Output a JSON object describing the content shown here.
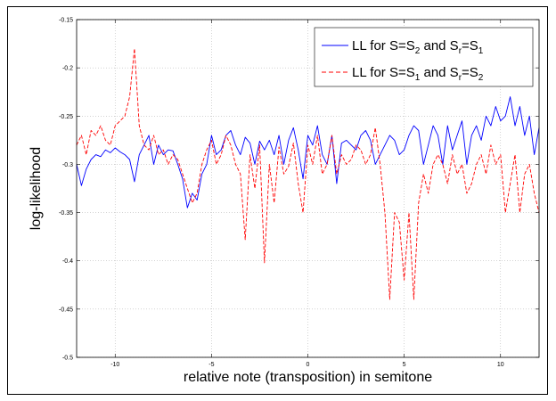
{
  "chart_data": {
    "type": "line",
    "xlabel": "relative note (transposition) in semitone",
    "ylabel": "log-likelihood",
    "xlim": [
      -12,
      12
    ],
    "ylim": [
      -0.5,
      -0.15
    ],
    "xticks": [
      -10,
      -5,
      0,
      5,
      10
    ],
    "xtick_labels": [
      "-10",
      "-5",
      "0",
      "5",
      "10"
    ],
    "yticks": [
      -0.5,
      -0.45,
      -0.4,
      -0.35,
      -0.3,
      -0.25,
      -0.2,
      -0.15
    ],
    "ytick_labels": [
      "-0.5",
      "-0.45",
      "-0.4",
      "-0.35",
      "-0.3",
      "-0.25",
      "-0.2",
      "-0.15"
    ],
    "grid": true,
    "legend_position": "top-right",
    "legend_entries": [
      {
        "label_parts": [
          "LL for S=S",
          "2",
          " and S",
          "r",
          "=S",
          "1"
        ]
      },
      {
        "label_parts": [
          "LL for S=S",
          "1",
          " and S",
          "r",
          "=S",
          "2"
        ]
      }
    ],
    "series": [
      {
        "color": "#0000ff",
        "dash": "solid",
        "x": [
          -12,
          -11.75,
          -11.5,
          -11.25,
          -11,
          -10.75,
          -10.5,
          -10.25,
          -10,
          -9.75,
          -9.5,
          -9.25,
          -9,
          -8.75,
          -8.5,
          -8.25,
          -8,
          -7.75,
          -7.5,
          -7.25,
          -7,
          -6.75,
          -6.5,
          -6.25,
          -6,
          -5.75,
          -5.5,
          -5.25,
          -5,
          -4.75,
          -4.5,
          -4.25,
          -4,
          -3.75,
          -3.5,
          -3.25,
          -3,
          -2.75,
          -2.5,
          -2.25,
          -2,
          -1.75,
          -1.5,
          -1.25,
          -1,
          -0.75,
          -0.5,
          -0.25,
          0,
          0.25,
          0.5,
          0.75,
          1,
          1.25,
          1.5,
          1.75,
          2,
          2.25,
          2.5,
          2.75,
          3,
          3.25,
          3.5,
          3.75,
          4,
          4.25,
          4.5,
          4.75,
          5,
          5.25,
          5.5,
          5.75,
          6,
          6.25,
          6.5,
          6.75,
          7,
          7.25,
          7.5,
          7.75,
          8,
          8.25,
          8.5,
          8.75,
          9,
          9.25,
          9.5,
          9.75,
          10,
          10.25,
          10.5,
          10.75,
          11,
          11.25,
          11.5,
          11.75,
          12
        ],
        "y": [
          -0.3,
          -0.322,
          -0.305,
          -0.295,
          -0.29,
          -0.292,
          -0.285,
          -0.288,
          -0.283,
          -0.287,
          -0.29,
          -0.295,
          -0.318,
          -0.29,
          -0.28,
          -0.27,
          -0.3,
          -0.28,
          -0.29,
          -0.285,
          -0.286,
          -0.3,
          -0.315,
          -0.345,
          -0.33,
          -0.337,
          -0.31,
          -0.3,
          -0.27,
          -0.29,
          -0.285,
          -0.27,
          -0.265,
          -0.28,
          -0.29,
          -0.272,
          -0.278,
          -0.3,
          -0.276,
          -0.285,
          -0.275,
          -0.29,
          -0.27,
          -0.3,
          -0.275,
          -0.262,
          -0.285,
          -0.315,
          -0.27,
          -0.28,
          -0.26,
          -0.29,
          -0.3,
          -0.27,
          -0.32,
          -0.278,
          -0.275,
          -0.28,
          -0.285,
          -0.27,
          -0.265,
          -0.275,
          -0.3,
          -0.29,
          -0.28,
          -0.27,
          -0.275,
          -0.29,
          -0.285,
          -0.27,
          -0.26,
          -0.265,
          -0.3,
          -0.28,
          -0.26,
          -0.27,
          -0.3,
          -0.26,
          -0.285,
          -0.27,
          -0.255,
          -0.3,
          -0.27,
          -0.26,
          -0.275,
          -0.25,
          -0.26,
          -0.24,
          -0.255,
          -0.25,
          -0.23,
          -0.26,
          -0.24,
          -0.27,
          -0.25,
          -0.29,
          -0.262
        ]
      },
      {
        "color": "#ff0000",
        "dash": "dashed",
        "x": [
          -12,
          -11.75,
          -11.5,
          -11.25,
          -11,
          -10.75,
          -10.5,
          -10.25,
          -10,
          -9.75,
          -9.5,
          -9.25,
          -9,
          -8.75,
          -8.5,
          -8.25,
          -8,
          -7.75,
          -7.5,
          -7.25,
          -7,
          -6.75,
          -6.5,
          -6.25,
          -6,
          -5.75,
          -5.5,
          -5.25,
          -5,
          -4.75,
          -4.5,
          -4.25,
          -4,
          -3.75,
          -3.5,
          -3.25,
          -3,
          -2.75,
          -2.5,
          -2.25,
          -2,
          -1.75,
          -1.5,
          -1.25,
          -1,
          -0.75,
          -0.5,
          -0.25,
          0,
          0.25,
          0.5,
          0.75,
          1,
          1.25,
          1.5,
          1.75,
          2,
          2.25,
          2.5,
          2.75,
          3,
          3.25,
          3.5,
          3.75,
          4,
          4.25,
          4.5,
          4.75,
          5,
          5.25,
          5.5,
          5.75,
          6,
          6.25,
          6.5,
          6.75,
          7,
          7.25,
          7.5,
          7.75,
          8,
          8.25,
          8.5,
          8.75,
          9,
          9.25,
          9.5,
          9.75,
          10,
          10.25,
          10.5,
          10.75,
          11,
          11.25,
          11.5,
          11.75,
          12
        ],
        "y": [
          -0.28,
          -0.27,
          -0.29,
          -0.265,
          -0.27,
          -0.26,
          -0.275,
          -0.28,
          -0.26,
          -0.255,
          -0.25,
          -0.23,
          -0.18,
          -0.26,
          -0.28,
          -0.285,
          -0.27,
          -0.29,
          -0.285,
          -0.3,
          -0.29,
          -0.295,
          -0.31,
          -0.325,
          -0.34,
          -0.33,
          -0.3,
          -0.285,
          -0.275,
          -0.3,
          -0.29,
          -0.27,
          -0.28,
          -0.3,
          -0.31,
          -0.378,
          -0.29,
          -0.325,
          -0.28,
          -0.402,
          -0.3,
          -0.34,
          -0.282,
          -0.31,
          -0.302,
          -0.278,
          -0.32,
          -0.35,
          -0.28,
          -0.3,
          -0.27,
          -0.31,
          -0.3,
          -0.27,
          -0.31,
          -0.29,
          -0.3,
          -0.295,
          -0.28,
          -0.285,
          -0.3,
          -0.29,
          -0.262,
          -0.3,
          -0.35,
          -0.44,
          -0.35,
          -0.36,
          -0.42,
          -0.35,
          -0.44,
          -0.34,
          -0.31,
          -0.33,
          -0.3,
          -0.29,
          -0.3,
          -0.32,
          -0.29,
          -0.31,
          -0.3,
          -0.33,
          -0.32,
          -0.3,
          -0.29,
          -0.31,
          -0.28,
          -0.3,
          -0.29,
          -0.35,
          -0.32,
          -0.29,
          -0.35,
          -0.31,
          -0.3,
          -0.33,
          -0.35
        ]
      }
    ]
  }
}
